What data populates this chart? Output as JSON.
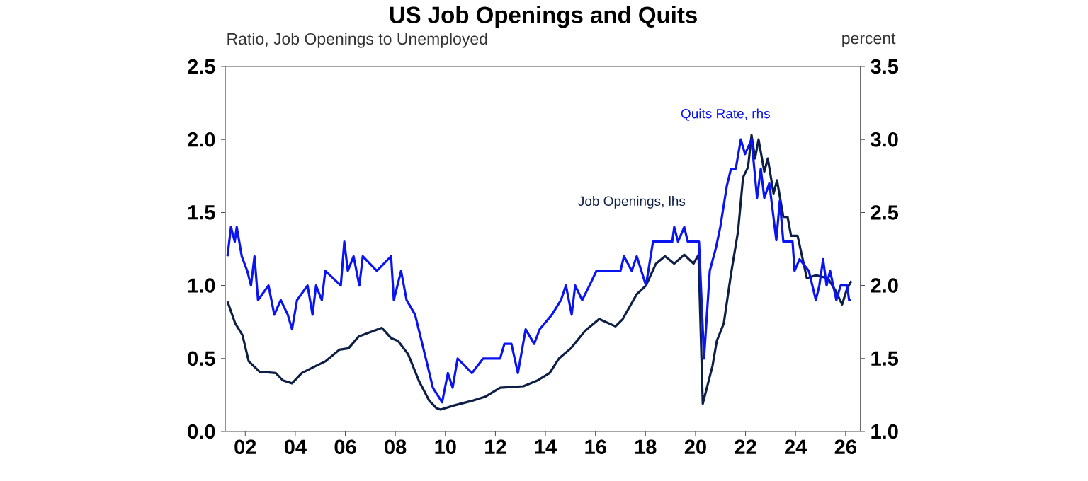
{
  "chart_data": {
    "type": "line",
    "title": "US Job Openings and Quits",
    "ylabel": "Ratio, Job Openings to Unemployed",
    "y2label": "percent",
    "marker": "none",
    "line_style": "solid",
    "xlim": [
      2001.2,
      2026.6
    ],
    "xticks": [
      {
        "value": 2002,
        "label": "02"
      },
      {
        "value": 2004,
        "label": "04"
      },
      {
        "value": 2006,
        "label": "06"
      },
      {
        "value": 2008,
        "label": "08"
      },
      {
        "value": 2010,
        "label": "10"
      },
      {
        "value": 2012,
        "label": "12"
      },
      {
        "value": 2014,
        "label": "14"
      },
      {
        "value": 2016,
        "label": "16"
      },
      {
        "value": 2018,
        "label": "18"
      },
      {
        "value": 2020,
        "label": "20"
      },
      {
        "value": 2022,
        "label": "22"
      },
      {
        "value": 2024,
        "label": "24"
      },
      {
        "value": 2026,
        "label": "26"
      }
    ],
    "ylim": [
      0,
      2.5
    ],
    "yticks": [
      {
        "value": 0,
        "label": "0.0"
      },
      {
        "value": 0.5,
        "label": "0.5"
      },
      {
        "value": 1,
        "label": "1.0"
      },
      {
        "value": 1.5,
        "label": "1.5"
      },
      {
        "value": 2,
        "label": "2.0"
      },
      {
        "value": 2.5,
        "label": "2.5"
      }
    ],
    "y2lim": [
      1,
      3.5
    ],
    "y2ticks": [
      {
        "value": 1,
        "label": "1.0"
      },
      {
        "value": 1.5,
        "label": "1.5"
      },
      {
        "value": 2,
        "label": "2.0"
      },
      {
        "value": 2.5,
        "label": "2.5"
      },
      {
        "value": 3,
        "label": "3.0"
      },
      {
        "value": 3.5,
        "label": "3.5"
      }
    ],
    "series": [
      {
        "name": "Job Openings, lhs",
        "color": "#0d1f45",
        "x": [
          2001.29,
          2001.6,
          2001.89,
          2002.14,
          2002.57,
          2003.22,
          2003.5,
          2003.87,
          2004.26,
          2004.72,
          2005.2,
          2005.76,
          2006.13,
          2006.53,
          2006.98,
          2007.46,
          2007.83,
          2008.11,
          2008.51,
          2008.96,
          2009.36,
          2009.64,
          2009.81,
          2010.38,
          2011.06,
          2011.62,
          2012.19,
          2013.12,
          2013.69,
          2014.17,
          2014.54,
          2015.02,
          2015.59,
          2016.15,
          2016.8,
          2017.09,
          2017.65,
          2018.02,
          2018.42,
          2018.78,
          2019.15,
          2019.55,
          2019.92,
          2020.12,
          2020.29,
          2020.68,
          2020.85,
          2021.13,
          2021.42,
          2021.7,
          2021.9,
          2022.1,
          2022.24,
          2022.38,
          2022.52,
          2022.75,
          2022.89,
          2023.12,
          2023.26,
          2023.51,
          2023.68,
          2023.82,
          2024.08,
          2024.45,
          2024.81,
          2025.29,
          2025.58,
          2025.86,
          2026.06,
          2026.23
        ],
        "values": [
          0.89,
          0.74,
          0.66,
          0.48,
          0.41,
          0.4,
          0.35,
          0.33,
          0.4,
          0.44,
          0.48,
          0.56,
          0.57,
          0.65,
          0.68,
          0.71,
          0.64,
          0.62,
          0.53,
          0.34,
          0.21,
          0.16,
          0.15,
          0.18,
          0.21,
          0.24,
          0.3,
          0.31,
          0.35,
          0.4,
          0.5,
          0.57,
          0.69,
          0.77,
          0.72,
          0.77,
          0.94,
          1.0,
          1.15,
          1.2,
          1.15,
          1.21,
          1.15,
          1.21,
          0.19,
          0.45,
          0.62,
          0.74,
          1.08,
          1.37,
          1.74,
          1.81,
          2.03,
          1.87,
          2.0,
          1.78,
          1.87,
          1.63,
          1.72,
          1.47,
          1.47,
          1.34,
          1.34,
          1.05,
          1.07,
          1.05,
          0.97,
          0.87,
          0.98,
          1.03
        ]
      },
      {
        "name": "Quits Rate, rhs",
        "color": "#0a14f0",
        "axis": "y2",
        "x": [
          2001.29,
          2001.43,
          2001.58,
          2001.66,
          2001.86,
          2002.08,
          2002.23,
          2002.37,
          2002.51,
          2002.93,
          2003.16,
          2003.42,
          2003.7,
          2003.87,
          2004.07,
          2004.49,
          2004.69,
          2004.83,
          2005.06,
          2005.2,
          2005.82,
          2005.96,
          2006.1,
          2006.33,
          2006.56,
          2006.7,
          2007.26,
          2007.83,
          2007.94,
          2008.23,
          2008.45,
          2008.79,
          2009.22,
          2009.5,
          2009.87,
          2010.1,
          2010.29,
          2010.49,
          2011.06,
          2011.51,
          2012.19,
          2012.36,
          2012.64,
          2012.9,
          2013.21,
          2013.55,
          2013.77,
          2014.26,
          2014.62,
          2014.82,
          2015.05,
          2015.19,
          2015.47,
          2015.76,
          2016.04,
          2016.52,
          2017.0,
          2017.14,
          2017.45,
          2017.65,
          2018.02,
          2018.3,
          2019.07,
          2019.15,
          2019.3,
          2019.55,
          2019.69,
          2020.14,
          2020.34,
          2020.57,
          2020.82,
          2020.99,
          2021.25,
          2021.42,
          2021.61,
          2021.81,
          2021.98,
          2022.24,
          2022.46,
          2022.61,
          2022.75,
          2022.95,
          2023.23,
          2023.37,
          2023.51,
          2023.88,
          2023.96,
          2024.16,
          2024.53,
          2024.81,
          2024.95,
          2025.1,
          2025.24,
          2025.38,
          2025.63,
          2025.8,
          2026.06,
          2026.14,
          2026.23
        ],
        "values": [
          2.2,
          2.4,
          2.3,
          2.4,
          2.2,
          2.1,
          2.0,
          2.2,
          1.9,
          2.0,
          1.8,
          1.9,
          1.8,
          1.7,
          1.9,
          2.0,
          1.8,
          2.0,
          1.9,
          2.1,
          2.0,
          2.3,
          2.1,
          2.2,
          2.0,
          2.2,
          2.1,
          2.2,
          1.9,
          2.1,
          1.9,
          1.8,
          1.5,
          1.3,
          1.2,
          1.4,
          1.3,
          1.5,
          1.4,
          1.5,
          1.5,
          1.6,
          1.6,
          1.4,
          1.7,
          1.6,
          1.7,
          1.8,
          1.9,
          2.0,
          1.8,
          2.0,
          1.9,
          2.0,
          2.1,
          2.1,
          2.1,
          2.2,
          2.1,
          2.2,
          2.0,
          2.3,
          2.3,
          2.4,
          2.3,
          2.4,
          2.3,
          2.3,
          1.5,
          2.1,
          2.26,
          2.4,
          2.68,
          2.8,
          2.8,
          3.0,
          2.9,
          3.0,
          2.6,
          2.8,
          2.6,
          2.7,
          2.31,
          2.58,
          2.3,
          2.3,
          2.1,
          2.18,
          2.1,
          1.9,
          2.0,
          2.18,
          2.0,
          2.1,
          1.9,
          2.0,
          2.0,
          1.9,
          1.9
        ]
      }
    ]
  }
}
